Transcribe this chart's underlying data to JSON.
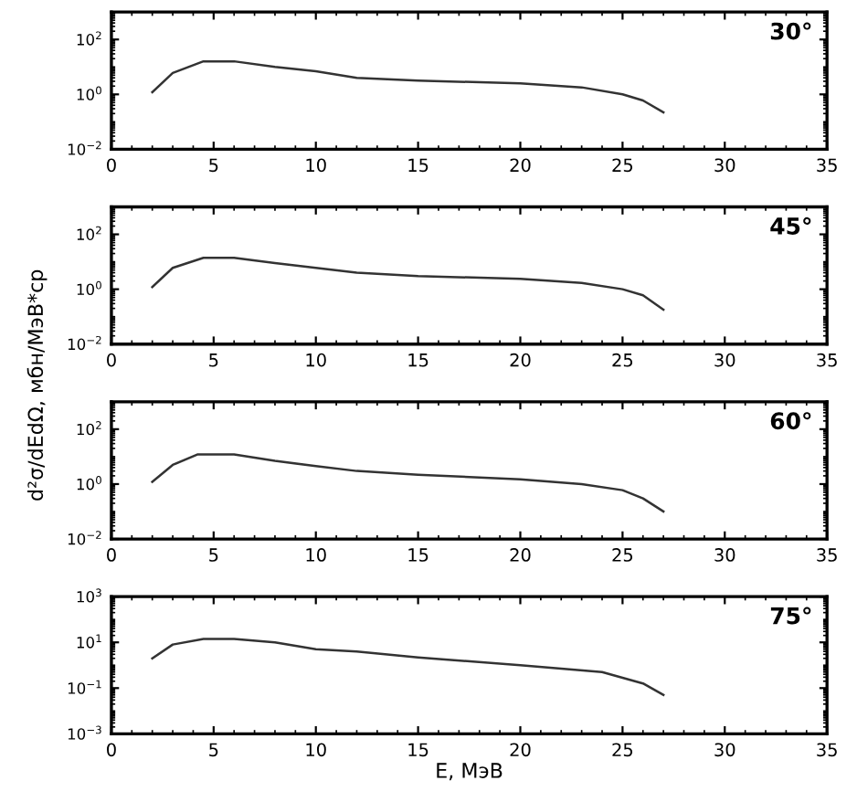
{
  "chart_data": [
    {
      "type": "line",
      "annotations": [
        "30°"
      ],
      "xlim": [
        0,
        35
      ],
      "xticks": [
        0,
        5,
        10,
        15,
        20,
        25,
        30,
        35
      ],
      "ylim": [
        0.01,
        1000
      ],
      "yticks": [
        {
          "value": 0.01,
          "label": "10$^{−2}$"
        },
        {
          "value": 1,
          "label": "10$^{0}$"
        },
        {
          "value": 100,
          "label": "10$^{2}$"
        }
      ],
      "log": "y",
      "series": [
        {
          "color": "#333333",
          "x": [
            2,
            3,
            4.5,
            6,
            8,
            10,
            12,
            15,
            20,
            23,
            25,
            26,
            27
          ],
          "values": [
            1.2,
            6,
            16,
            16,
            10,
            7,
            4,
            3.2,
            2.5,
            1.8,
            1,
            0.6,
            0.22
          ]
        }
      ]
    },
    {
      "type": "line",
      "ylabel": "d²σ/dEdΩ, мбн/МэВ*ср",
      "annotations": [
        "45°"
      ],
      "xlim": [
        0,
        35
      ],
      "xticks": [
        0,
        5,
        10,
        15,
        20,
        25,
        30,
        35
      ],
      "ylim": [
        0.01,
        1000
      ],
      "yticks": [
        {
          "value": 0.01,
          "label": "10$^{−2}$"
        },
        {
          "value": 1,
          "label": "10$^{0}$"
        },
        {
          "value": 100,
          "label": "10$^{2}$"
        }
      ],
      "log": "y",
      "series": [
        {
          "color": "#333333",
          "x": [
            2,
            3,
            4.5,
            6,
            8,
            10,
            12,
            15,
            20,
            23,
            25,
            26,
            27
          ],
          "values": [
            1.2,
            6,
            14,
            14,
            9,
            6,
            4,
            3,
            2.4,
            1.7,
            1,
            0.6,
            0.18
          ]
        }
      ]
    },
    {
      "type": "line",
      "annotations": [
        "60°"
      ],
      "xlim": [
        0,
        35
      ],
      "xticks": [
        0,
        5,
        10,
        15,
        20,
        25,
        30,
        35
      ],
      "ylim": [
        0.01,
        1000
      ],
      "yticks": [
        {
          "value": 0.01,
          "label": "10$^{−2}$"
        },
        {
          "value": 1,
          "label": "10$^{0}$"
        },
        {
          "value": 100,
          "label": "10$^{2}$"
        }
      ],
      "log": "y",
      "series": [
        {
          "color": "#333333",
          "x": [
            2,
            3,
            4.2,
            6,
            8,
            10,
            12,
            15,
            20,
            23,
            25,
            26,
            27
          ],
          "values": [
            1.2,
            5,
            12,
            12,
            7,
            4.5,
            3,
            2.2,
            1.5,
            1,
            0.6,
            0.3,
            0.1
          ]
        }
      ]
    },
    {
      "type": "line",
      "xlabel": "E, МэВ",
      "annotations": [
        "75°"
      ],
      "xlim": [
        0,
        35
      ],
      "xticks": [
        0,
        5,
        10,
        15,
        20,
        25,
        30,
        35
      ],
      "ylim": [
        0.001,
        1000
      ],
      "yticks": [
        {
          "value": 0.001,
          "label": "10$^{−3}$"
        },
        {
          "value": 0.1,
          "label": "10$^{−1}$"
        },
        {
          "value": 10,
          "label": "10$^{1}$"
        },
        {
          "value": 1000,
          "label": "10$^{3}$"
        }
      ],
      "log": "y",
      "series": [
        {
          "color": "#333333",
          "x": [
            2,
            3,
            4.5,
            6,
            8,
            10,
            12,
            15,
            20,
            24,
            26,
            27
          ],
          "values": [
            2,
            8,
            14,
            14,
            10,
            5,
            4,
            2.2,
            1,
            0.5,
            0.16,
            0.05
          ]
        }
      ]
    }
  ]
}
